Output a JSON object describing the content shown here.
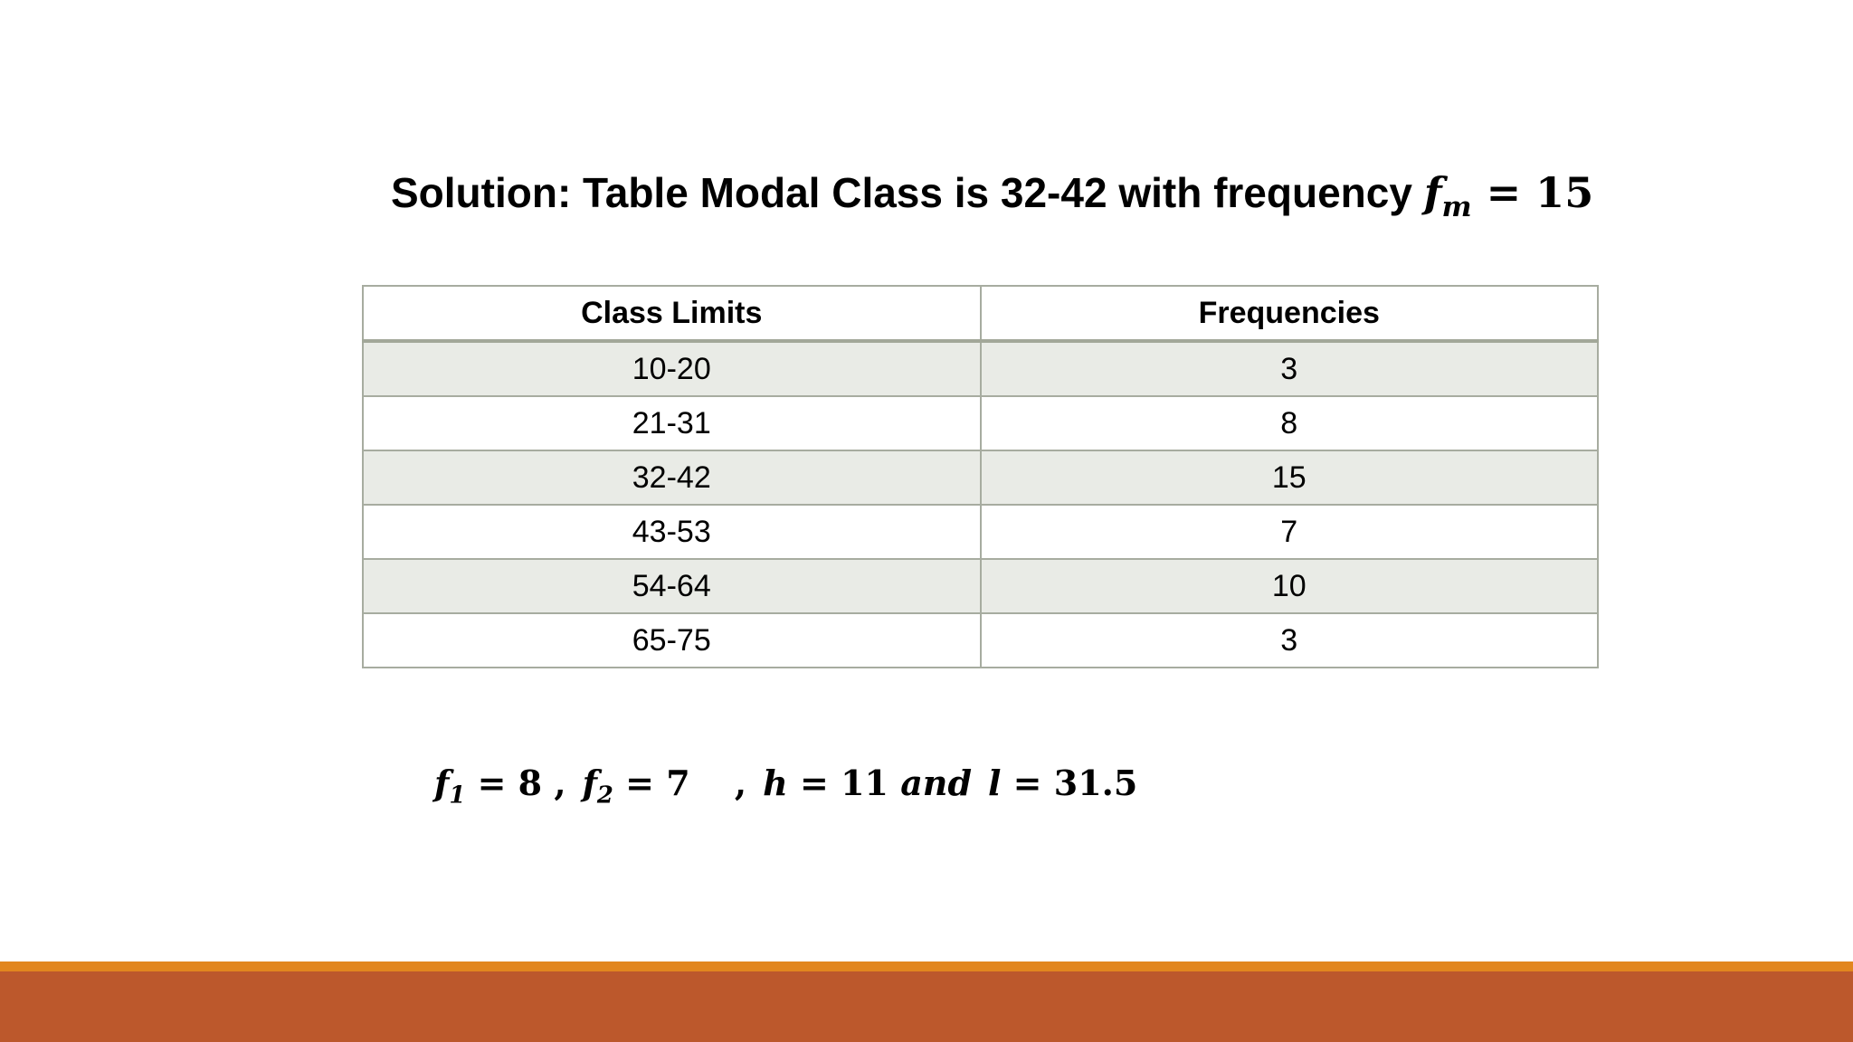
{
  "title": {
    "text": "Solution: Table Modal Class is 32-42 with frequency ",
    "math_var": "f",
    "math_sub": "m",
    "math_rest": " = 15"
  },
  "table": {
    "headers": [
      "Class Limits",
      "Frequencies"
    ],
    "rows": [
      [
        "10-20",
        "3"
      ],
      [
        "21-31",
        "8"
      ],
      [
        "32-42",
        "15"
      ],
      [
        "43-53",
        "7"
      ],
      [
        "54-64",
        "10"
      ],
      [
        "65-75",
        "3"
      ]
    ]
  },
  "formula": {
    "f1_var": "f",
    "f1_sub": "1",
    "f1_rest": " = 8",
    "sep1": " ,",
    "f2_var": "f",
    "f2_sub": "2",
    "f2_rest": " = 7",
    "sep2": " ,",
    "h_var": "h",
    "h_rest": " = 11 ",
    "and_text": "and",
    "l_var": "l",
    "l_rest": " = 31.5"
  },
  "colors": {
    "footer_stripe": "#e2861f",
    "footer_bar": "#bc582c",
    "row_shade": "#e9ebe6",
    "table_border": "#a7aca0"
  }
}
